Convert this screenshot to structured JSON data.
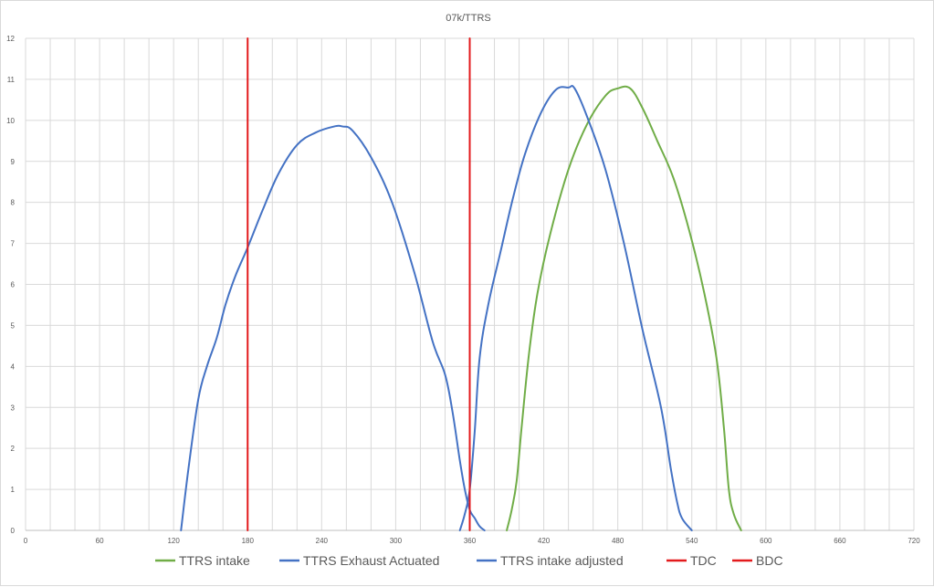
{
  "chart_data": {
    "type": "line",
    "title": "07k/TTRS",
    "xlabel": "",
    "ylabel": "",
    "xlim": [
      0,
      720
    ],
    "ylim": [
      0,
      12
    ],
    "grid": true,
    "legend_position": "bottom",
    "x_minor_step": 20,
    "x_ticks": [
      0,
      60,
      120,
      180,
      240,
      300,
      360,
      420,
      480,
      540,
      600,
      660,
      720
    ],
    "y_ticks": [
      0,
      1,
      2,
      3,
      4,
      5,
      6,
      7,
      8,
      9,
      10,
      11,
      12
    ],
    "series": [
      {
        "name": "TTRS intake",
        "color": "#70ad47",
        "x": [
          390,
          394,
          398,
          402,
          408,
          415,
          425,
          440,
          455,
          470,
          480,
          490,
          500,
          512,
          525,
          538,
          550,
          560,
          566,
          570,
          574,
          580
        ],
        "y": [
          0,
          0.5,
          1.2,
          2.5,
          4.3,
          5.8,
          7.2,
          8.8,
          9.9,
          10.6,
          10.78,
          10.78,
          10.3,
          9.5,
          8.6,
          7.3,
          5.8,
          4.2,
          2.5,
          1.0,
          0.4,
          0
        ]
      },
      {
        "name": "TTRS Exhaust Actuated",
        "color": "#4472c4",
        "x": [
          126,
          132,
          140,
          147,
          155,
          162,
          170,
          180,
          192,
          205,
          220,
          235,
          250,
          257,
          265,
          280,
          297,
          315,
          330,
          340,
          346,
          352,
          356,
          360,
          364,
          368,
          372
        ],
        "y": [
          0,
          1.5,
          3.2,
          4.0,
          4.7,
          5.5,
          6.2,
          6.9,
          7.8,
          8.7,
          9.4,
          9.7,
          9.85,
          9.85,
          9.75,
          9.1,
          8.0,
          6.3,
          4.6,
          3.8,
          2.9,
          1.7,
          1.0,
          0.5,
          0.3,
          0.1,
          0
        ]
      },
      {
        "name": "TTRS intake adjusted",
        "color": "#4472c4",
        "x": [
          352,
          356,
          360,
          364,
          368,
          375,
          385,
          395,
          405,
          418,
          430,
          440,
          445,
          455,
          470,
          485,
          500,
          515,
          523,
          528,
          532,
          540
        ],
        "y": [
          0,
          0.4,
          1.0,
          2.4,
          4.2,
          5.5,
          6.8,
          8.1,
          9.2,
          10.2,
          10.75,
          10.8,
          10.78,
          10.1,
          8.8,
          7.0,
          4.9,
          3.0,
          1.5,
          0.7,
          0.3,
          0
        ]
      },
      {
        "name": "TDC",
        "color": "#e31a1c",
        "x": [
          180,
          180
        ],
        "y": [
          0,
          12
        ]
      },
      {
        "name": "BDC",
        "color": "#e31a1c",
        "x": [
          360,
          360
        ],
        "y": [
          0,
          12
        ]
      }
    ]
  }
}
